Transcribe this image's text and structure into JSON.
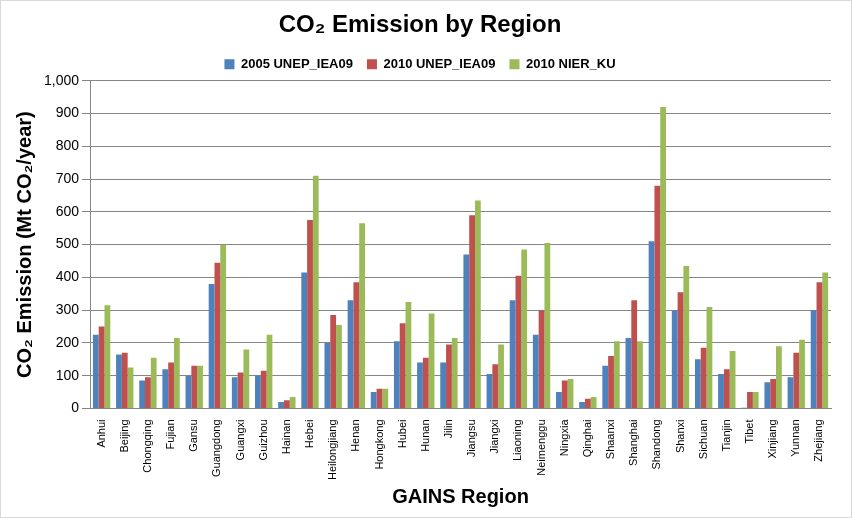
{
  "chart_data": {
    "type": "bar",
    "title": "CO₂ Emission by Region",
    "x_label": "GAINS Region",
    "y_label": "CO₂ Emission (Mt CO₂/year)",
    "categories": [
      "Anhui",
      "Beijing",
      "Chongqing",
      "Fujian",
      "Gansu",
      "Guangdong",
      "Guangxi",
      "Guizhou",
      "Hainan",
      "Hebei",
      "Heilongjiang",
      "Henan",
      "Hongkong",
      "Hubei",
      "Hunan",
      "Jilin",
      "Jiangsu",
      "Jiangxi",
      "Liaoning",
      "Neimenggu",
      "Ningxia",
      "Qinghai",
      "Shaanxi",
      "Shanghai",
      "Shandong",
      "Shanxi",
      "Sichuan",
      "Tianjin",
      "Tibet",
      "Xinjiang",
      "Yunnan",
      "Zhejiang"
    ],
    "series": [
      {
        "name": "2005 UNEP_IEA09",
        "color": "#4f81bd",
        "values": [
          225,
          165,
          85,
          120,
          100,
          380,
          95,
          100,
          20,
          415,
          200,
          330,
          50,
          205,
          140,
          140,
          470,
          105,
          330,
          225,
          50,
          20,
          130,
          215,
          510,
          300,
          150,
          105,
          2,
          80,
          95,
          300
        ]
      },
      {
        "name": "2010 UNEP_IEA09",
        "color": "#c0504d",
        "values": [
          250,
          170,
          95,
          140,
          130,
          445,
          110,
          115,
          25,
          575,
          285,
          385,
          60,
          260,
          155,
          195,
          590,
          135,
          405,
          300,
          85,
          30,
          160,
          330,
          680,
          355,
          185,
          120,
          50,
          90,
          170,
          385
        ]
      },
      {
        "name": "2010 NIER_KU",
        "color": "#9bbb59",
        "values": [
          315,
          125,
          155,
          215,
          130,
          500,
          180,
          225,
          35,
          710,
          255,
          565,
          60,
          325,
          290,
          215,
          635,
          195,
          485,
          505,
          90,
          35,
          205,
          205,
          920,
          435,
          310,
          175,
          50,
          190,
          210,
          415
        ]
      }
    ],
    "ylim": [
      0,
      1000
    ],
    "yticks": [
      0,
      100,
      200,
      300,
      400,
      500,
      600,
      700,
      800,
      900,
      {
        "value": 1000,
        "label": "1,000"
      }
    ],
    "grid": true,
    "legend": "top"
  }
}
